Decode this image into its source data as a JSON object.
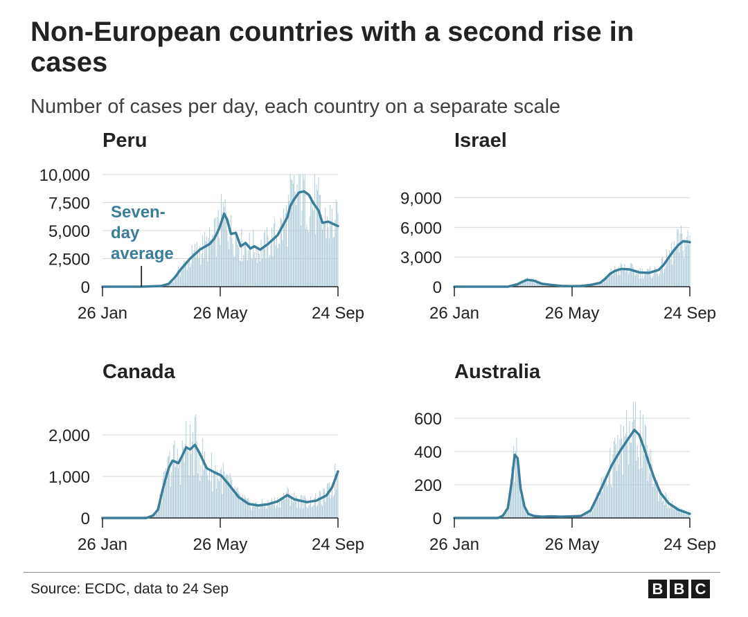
{
  "header": {
    "title": "Non-European countries with a second rise in cases",
    "subtitle": "Number of cases per day, each country on a separate scale"
  },
  "footer": {
    "source": "Source: ECDC, data to 24 Sep",
    "logo": [
      "B",
      "B",
      "C"
    ]
  },
  "colors": {
    "line": "#3a7e9a",
    "bars": "#a9c9d6",
    "grid": "#d6d6d6",
    "axis": "#222222",
    "annotation": "#3a7e9a"
  },
  "chart_data": [
    {
      "type": "line",
      "panel": "Peru",
      "title": "Peru",
      "ylim": [
        0,
        10000
      ],
      "yticks": [
        0,
        2500,
        5000,
        7500,
        10000
      ],
      "yticklabels": [
        "0",
        "2,500",
        "5,000",
        "7,500",
        "10,000"
      ],
      "xlim_days": [
        0,
        242
      ],
      "xticks": [
        "26 Jan",
        "26 May",
        "24 Sep"
      ],
      "grid": true,
      "annotation": {
        "lines": [
          "Seven-",
          "day",
          "average"
        ],
        "x_day": 40
      },
      "bars_daily": true,
      "series": [
        {
          "x_days": [
            0,
            40,
            60,
            68,
            75,
            80,
            90,
            100,
            110,
            115,
            120,
            125,
            128,
            132,
            137,
            142,
            147,
            152,
            156,
            162,
            170,
            180,
            190,
            193,
            197,
            202,
            207,
            212,
            217,
            222,
            226,
            232,
            237,
            242
          ],
          "values": [
            0,
            0,
            60,
            250,
            900,
            1500,
            2500,
            3300,
            3800,
            4300,
            5200,
            6500,
            6000,
            4700,
            4800,
            3600,
            3900,
            3400,
            3600,
            3300,
            3800,
            4600,
            6200,
            7200,
            7800,
            8400,
            8500,
            8200,
            7400,
            6800,
            5700,
            5800,
            5600,
            5400
          ]
        }
      ]
    },
    {
      "type": "line",
      "panel": "Israel",
      "title": "Israel",
      "ylim": [
        0,
        11500
      ],
      "yticks": [
        0,
        3000,
        6000,
        9000
      ],
      "yticklabels": [
        "0",
        "3,000",
        "6,000",
        "9,000"
      ],
      "xlim_days": [
        0,
        242
      ],
      "xticks": [
        "26 Jan",
        "26 May",
        "24 Sep"
      ],
      "grid": true,
      "bars_daily": true,
      "series": [
        {
          "x_days": [
            0,
            55,
            65,
            70,
            75,
            82,
            90,
            100,
            110,
            120,
            130,
            140,
            150,
            155,
            160,
            165,
            172,
            180,
            185,
            190,
            200,
            210,
            215,
            220,
            225,
            230,
            235,
            240,
            242
          ],
          "values": [
            0,
            0,
            250,
            500,
            700,
            600,
            300,
            180,
            80,
            50,
            70,
            180,
            400,
            800,
            1300,
            1600,
            1800,
            1750,
            1600,
            1450,
            1400,
            1700,
            2200,
            2900,
            3600,
            4200,
            4600,
            4550,
            4500
          ]
        }
      ]
    },
    {
      "type": "line",
      "panel": "Canada",
      "title": "Canada",
      "ylim": [
        0,
        2800
      ],
      "yticks": [
        0,
        1000,
        2000
      ],
      "yticklabels": [
        "0",
        "1,000",
        "2,000"
      ],
      "xlim_days": [
        0,
        242
      ],
      "xticks": [
        "26 Jan",
        "26 May",
        "24 Sep"
      ],
      "grid": true,
      "bars_daily": true,
      "series": [
        {
          "x_days": [
            0,
            45,
            52,
            57,
            62,
            68,
            72,
            78,
            82,
            86,
            90,
            95,
            100,
            107,
            115,
            122,
            130,
            140,
            150,
            160,
            170,
            180,
            190,
            197,
            210,
            220,
            230,
            236,
            242
          ],
          "values": [
            0,
            0,
            60,
            200,
            700,
            1200,
            1380,
            1320,
            1500,
            1700,
            1650,
            1760,
            1550,
            1200,
            1100,
            1020,
            800,
            500,
            340,
            300,
            330,
            400,
            550,
            450,
            380,
            420,
            540,
            740,
            1120
          ]
        }
      ]
    },
    {
      "type": "line",
      "panel": "Australia",
      "title": "Australia",
      "ylim": [
        0,
        700
      ],
      "yticks": [
        0,
        200,
        400,
        600
      ],
      "yticklabels": [
        "0",
        "200",
        "400",
        "600"
      ],
      "xlim_days": [
        0,
        242
      ],
      "xticks": [
        "26 Jan",
        "26 May",
        "24 Sep"
      ],
      "grid": true,
      "bars_daily": true,
      "series": [
        {
          "x_days": [
            0,
            45,
            50,
            55,
            59,
            62,
            65,
            68,
            72,
            76,
            82,
            90,
            100,
            110,
            120,
            130,
            140,
            148,
            155,
            162,
            170,
            178,
            185,
            190,
            195,
            200,
            206,
            212,
            220,
            230,
            242
          ],
          "values": [
            0,
            0,
            15,
            60,
            220,
            380,
            360,
            180,
            70,
            25,
            12,
            8,
            10,
            8,
            10,
            12,
            45,
            140,
            230,
            320,
            400,
            470,
            530,
            500,
            420,
            330,
            230,
            150,
            90,
            50,
            25
          ]
        }
      ]
    }
  ]
}
